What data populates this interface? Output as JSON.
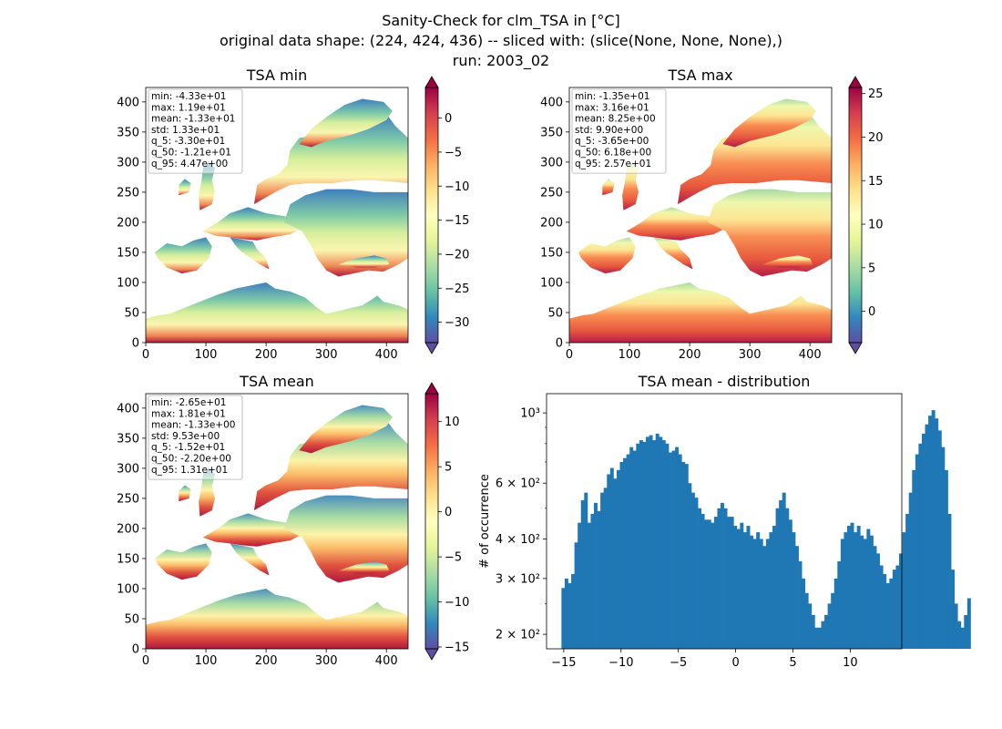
{
  "title": {
    "line1": "Sanity-Check for clm_TSA in [°C]",
    "line2": "original data shape: (224, 424, 436) -- sliced with: (slice(None, None, None),)",
    "line3": "run: 2003_02"
  },
  "colors": {
    "colormap": "Spectral_r",
    "histogram_bar": "#1f77b4",
    "stats_box_edge": "#b0b0b0"
  },
  "chart_data": [
    {
      "type": "heatmap",
      "title": "TSA min",
      "xlim": [
        0,
        436
      ],
      "ylim": [
        0,
        424
      ],
      "xticks": [
        "0",
        "100",
        "200",
        "300",
        "400"
      ],
      "yticks": [
        "0",
        "50",
        "100",
        "150",
        "200",
        "250",
        "300",
        "350",
        "400"
      ],
      "colorbar": {
        "min": -33,
        "max": 4.5,
        "ticks": [
          "0",
          "−5",
          "−10",
          "−15",
          "−20",
          "−25",
          "−30"
        ],
        "tick_values": [
          0,
          -5,
          -10,
          -15,
          -20,
          -25,
          -30
        ],
        "extend": "both"
      },
      "stats": [
        "min: -4.33e+01",
        "max: 1.19e+01",
        "mean: -1.33e+01",
        "std: 1.33e+01",
        "q_5: -3.30e+01",
        "q_50: -1.21e+01",
        "q_95: 4.47e+00"
      ]
    },
    {
      "type": "heatmap",
      "title": "TSA max",
      "xlim": [
        0,
        436
      ],
      "ylim": [
        0,
        424
      ],
      "xticks": [
        "0",
        "100",
        "200",
        "300",
        "400"
      ],
      "yticks": [
        "0",
        "50",
        "100",
        "150",
        "200",
        "250",
        "300",
        "350",
        "400"
      ],
      "colorbar": {
        "min": -3.6,
        "max": 25.7,
        "ticks": [
          "25",
          "20",
          "15",
          "10",
          "5",
          "0"
        ],
        "tick_values": [
          25,
          20,
          15,
          10,
          5,
          0
        ],
        "extend": "both"
      },
      "stats": [
        "min: -1.35e+01",
        "max: 3.16e+01",
        "mean: 8.25e+00",
        "std: 9.90e+00",
        "q_5: -3.65e+00",
        "q_50: 6.18e+00",
        "q_95: 2.57e+01"
      ]
    },
    {
      "type": "heatmap",
      "title": "TSA mean",
      "xlim": [
        0,
        436
      ],
      "ylim": [
        0,
        424
      ],
      "xticks": [
        "0",
        "100",
        "200",
        "300",
        "400"
      ],
      "yticks": [
        "0",
        "50",
        "100",
        "150",
        "200",
        "250",
        "300",
        "350",
        "400"
      ],
      "colorbar": {
        "min": -15.2,
        "max": 13.1,
        "ticks": [
          "10",
          "5",
          "0",
          "−5",
          "−10",
          "−15"
        ],
        "tick_values": [
          10,
          5,
          0,
          -5,
          -10,
          -15
        ],
        "extend": "both"
      },
      "stats": [
        "min: -2.65e+01",
        "max: 1.81e+01",
        "mean: -1.33e+00",
        "std: 9.53e+00",
        "q_5: -1.52e+01",
        "q_50: -2.20e+00",
        "q_95: 1.31e+01"
      ]
    },
    {
      "type": "bar",
      "title": "TSA mean - distribution",
      "ylabel": "# of occurrence",
      "yscale": "log",
      "xlim": [
        -16.5,
        14.5
      ],
      "ylim": [
        180,
        1150
      ],
      "xticks": [
        "−15",
        "−10",
        "−5",
        "0",
        "5",
        "10"
      ],
      "xtick_values": [
        -15,
        -10,
        -5,
        0,
        5,
        10
      ],
      "yticks": [
        "2 × 10²",
        "3 × 10²",
        "4 × 10²",
        "6 × 10²",
        "10³"
      ],
      "ytick_values": [
        200,
        300,
        400,
        600,
        1000
      ],
      "bin_start": -15.2,
      "bin_width": 0.2833,
      "values": [
        280,
        300,
        290,
        310,
        390,
        450,
        530,
        560,
        450,
        480,
        520,
        490,
        560,
        580,
        640,
        670,
        620,
        660,
        700,
        720,
        740,
        780,
        760,
        800,
        820,
        810,
        840,
        850,
        820,
        860,
        840,
        820,
        800,
        750,
        760,
        780,
        740,
        700,
        690,
        600,
        560,
        540,
        500,
        480,
        460,
        460,
        450,
        470,
        500,
        520,
        500,
        470,
        470,
        440,
        430,
        450,
        420,
        440,
        410,
        400,
        420,
        400,
        380,
        400,
        420,
        440,
        500,
        530,
        560,
        500,
        460,
        420,
        380,
        340,
        300,
        270,
        250,
        230,
        210,
        210,
        220,
        230,
        250,
        270,
        300,
        340,
        400,
        420,
        440,
        450,
        420,
        440,
        410,
        400,
        430,
        410,
        380,
        360,
        330,
        310,
        290,
        300,
        320,
        330,
        360,
        420,
        480,
        560,
        660,
        740,
        800,
        860,
        920,
        980,
        1020,
        960,
        880,
        780,
        660,
        480,
        320,
        250,
        220,
        210,
        230,
        260
      ]
    }
  ]
}
